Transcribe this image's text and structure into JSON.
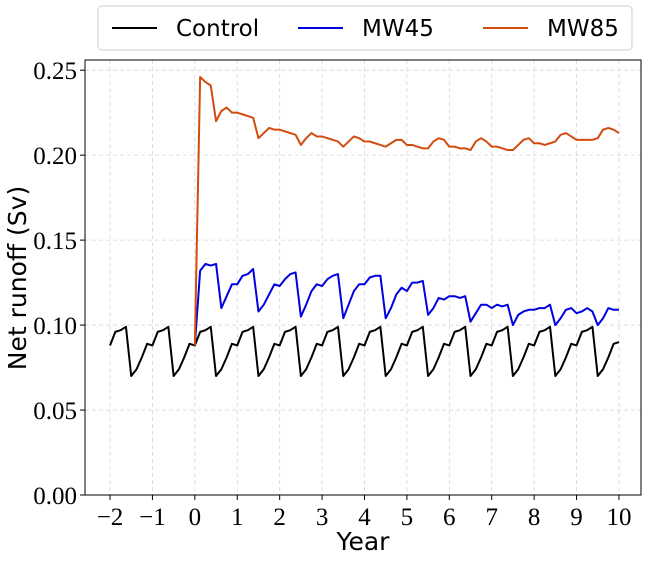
{
  "chart_data": {
    "type": "line",
    "x_label": "Year",
    "y_label": "Net runoff (Sv)",
    "xlim": [
      -2.59,
      10.52
    ],
    "ylim": [
      0,
      0.256
    ],
    "xticks": [
      {
        "value": -2,
        "label": "−2"
      },
      {
        "value": -1,
        "label": "−1"
      },
      0,
      1,
      2,
      3,
      4,
      5,
      6,
      7,
      8,
      9,
      10
    ],
    "yticks": [
      {
        "value": 0,
        "label": "0.00"
      },
      {
        "value": 0.05,
        "label": "0.05"
      },
      {
        "value": 0.1,
        "label": "0.10"
      },
      {
        "value": 0.15,
        "label": "0.15"
      },
      {
        "value": 0.2,
        "label": "0.20"
      },
      {
        "value": 0.25,
        "label": "0.25"
      }
    ],
    "grid": true,
    "legend": "top",
    "x": [
      -2,
      -1.875,
      -1.75,
      -1.625,
      -1.5,
      -1.375,
      -1.25,
      -1.125,
      -1,
      -0.875,
      -0.75,
      -0.625,
      -0.5,
      -0.375,
      -0.25,
      -0.125,
      0,
      0.125,
      0.25,
      0.375,
      0.5,
      0.625,
      0.75,
      0.875,
      1,
      1.125,
      1.25,
      1.375,
      1.5,
      1.625,
      1.75,
      1.875,
      2,
      2.125,
      2.25,
      2.375,
      2.5,
      2.625,
      2.75,
      2.875,
      3,
      3.125,
      3.25,
      3.375,
      3.5,
      3.625,
      3.75,
      3.875,
      4,
      4.125,
      4.25,
      4.375,
      4.5,
      4.625,
      4.75,
      4.875,
      5,
      5.125,
      5.25,
      5.375,
      5.5,
      5.625,
      5.75,
      5.875,
      6,
      6.125,
      6.25,
      6.375,
      6.5,
      6.625,
      6.75,
      6.875,
      7,
      7.125,
      7.25,
      7.375,
      7.5,
      7.625,
      7.75,
      7.875,
      8,
      8.125,
      8.25,
      8.375,
      8.5,
      8.625,
      8.75,
      8.875,
      9,
      9.125,
      9.25,
      9.375,
      9.5,
      9.625,
      9.75,
      9.875,
      10
    ],
    "series": [
      {
        "name": "Control",
        "color": "#000000",
        "values": [
          0.088,
          0.096,
          0.097,
          0.099,
          0.07,
          0.074,
          0.081,
          0.089,
          0.088,
          0.096,
          0.097,
          0.099,
          0.07,
          0.074,
          0.081,
          0.089,
          0.088,
          0.096,
          0.097,
          0.099,
          0.07,
          0.074,
          0.081,
          0.089,
          0.088,
          0.096,
          0.097,
          0.099,
          0.07,
          0.074,
          0.081,
          0.089,
          0.088,
          0.096,
          0.097,
          0.099,
          0.07,
          0.074,
          0.081,
          0.089,
          0.088,
          0.096,
          0.097,
          0.099,
          0.07,
          0.074,
          0.081,
          0.089,
          0.088,
          0.096,
          0.097,
          0.099,
          0.07,
          0.074,
          0.081,
          0.089,
          0.088,
          0.096,
          0.097,
          0.099,
          0.07,
          0.074,
          0.081,
          0.089,
          0.088,
          0.096,
          0.097,
          0.099,
          0.07,
          0.074,
          0.081,
          0.089,
          0.088,
          0.096,
          0.097,
          0.099,
          0.07,
          0.074,
          0.081,
          0.089,
          0.088,
          0.096,
          0.097,
          0.099,
          0.07,
          0.074,
          0.081,
          0.089,
          0.088,
          0.096,
          0.097,
          0.099,
          0.07,
          0.074,
          0.081,
          0.089,
          0.09
        ]
      },
      {
        "name": "MW45",
        "color": "#0000e0",
        "values": [
          null,
          null,
          null,
          null,
          null,
          null,
          null,
          null,
          null,
          null,
          null,
          null,
          null,
          null,
          null,
          null,
          0.088,
          0.132,
          0.136,
          0.135,
          0.136,
          0.11,
          0.117,
          0.124,
          0.124,
          0.129,
          0.13,
          0.133,
          0.108,
          0.112,
          0.118,
          0.124,
          0.123,
          0.127,
          0.13,
          0.131,
          0.105,
          0.112,
          0.12,
          0.124,
          0.123,
          0.127,
          0.129,
          0.13,
          0.104,
          0.112,
          0.12,
          0.124,
          0.124,
          0.128,
          0.129,
          0.129,
          0.104,
          0.11,
          0.118,
          0.122,
          0.12,
          0.125,
          0.125,
          0.126,
          0.106,
          0.11,
          0.116,
          0.115,
          0.117,
          0.117,
          0.116,
          0.117,
          0.102,
          0.107,
          0.112,
          0.112,
          0.11,
          0.112,
          0.111,
          0.112,
          0.1,
          0.106,
          0.108,
          0.109,
          0.109,
          0.11,
          0.11,
          0.112,
          0.1,
          0.104,
          0.109,
          0.11,
          0.107,
          0.108,
          0.11,
          0.108,
          0.1,
          0.104,
          0.11,
          0.109,
          0.109
        ]
      },
      {
        "name": "MW85",
        "color": "#d24b0f",
        "values": [
          null,
          null,
          null,
          null,
          null,
          null,
          null,
          null,
          null,
          null,
          null,
          null,
          null,
          null,
          null,
          null,
          0.088,
          0.246,
          0.243,
          0.241,
          0.22,
          0.226,
          0.228,
          0.225,
          0.225,
          0.224,
          0.223,
          0.222,
          0.21,
          0.213,
          0.216,
          0.215,
          0.215,
          0.214,
          0.213,
          0.212,
          0.206,
          0.21,
          0.213,
          0.211,
          0.211,
          0.21,
          0.209,
          0.208,
          0.205,
          0.208,
          0.211,
          0.21,
          0.208,
          0.208,
          0.207,
          0.206,
          0.205,
          0.207,
          0.209,
          0.209,
          0.206,
          0.206,
          0.205,
          0.204,
          0.204,
          0.208,
          0.21,
          0.209,
          0.205,
          0.205,
          0.204,
          0.204,
          0.203,
          0.208,
          0.21,
          0.208,
          0.205,
          0.205,
          0.204,
          0.203,
          0.203,
          0.206,
          0.209,
          0.21,
          0.207,
          0.207,
          0.206,
          0.207,
          0.208,
          0.212,
          0.213,
          0.211,
          0.209,
          0.209,
          0.209,
          0.209,
          0.21,
          0.215,
          0.216,
          0.215,
          0.213
        ]
      }
    ]
  }
}
